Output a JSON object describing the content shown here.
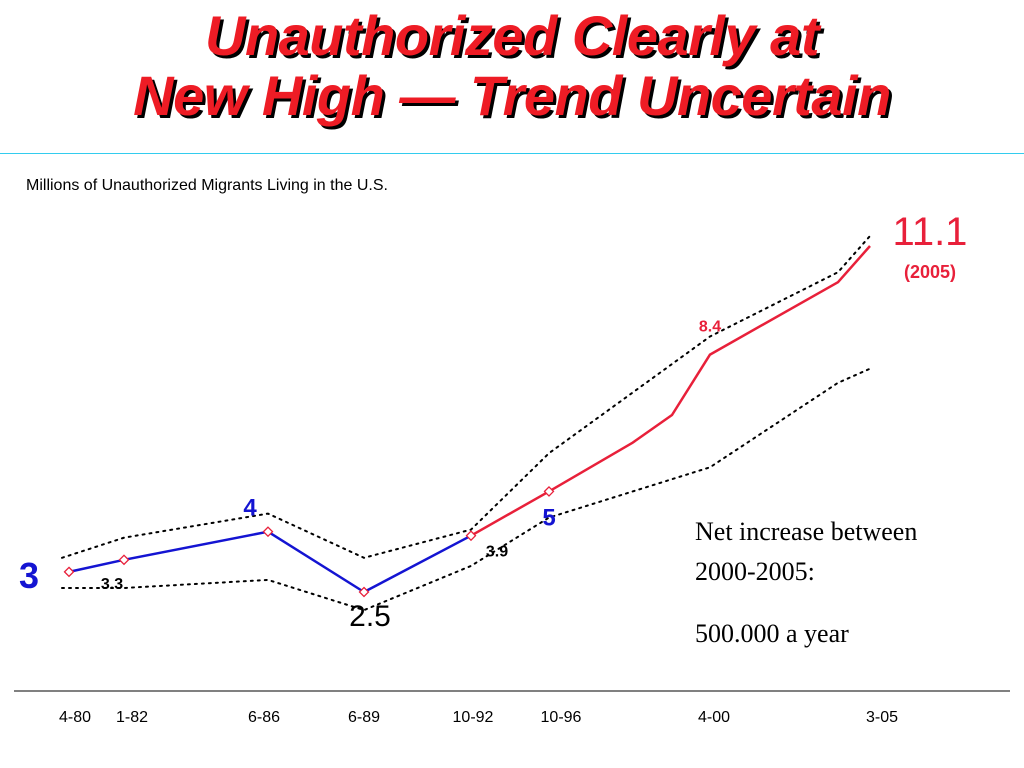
{
  "title": {
    "line1": "Unauthorized Clearly at",
    "line2": "New High — Trend Uncertain"
  },
  "subtitle": "Millions of Unauthorized Migrants Living in the U.S.",
  "note": {
    "line1": "Net increase between",
    "line2": "2000-2005:",
    "line3": "500.000 a year"
  },
  "chart_data": {
    "type": "line",
    "ylabel": "",
    "xlabel": "",
    "ylim": [
      2,
      12
    ],
    "x_ticks": [
      {
        "label": "4-80",
        "t": 1980.25
      },
      {
        "label": "1-82",
        "t": 1982.0
      },
      {
        "label": "6-86",
        "t": 1986.42
      },
      {
        "label": "6-89",
        "t": 1989.42
      },
      {
        "label": "10-92",
        "t": 1992.75
      },
      {
        "label": "10-96",
        "t": 1996.75
      },
      {
        "label": "4-00",
        "t": 2000.25
      },
      {
        "label": "3-05",
        "t": 2005.17
      }
    ],
    "series": [
      {
        "name": "",
        "color": "#1414d2",
        "points": [
          [
            1980.25,
            3.0
          ],
          [
            1982.0,
            3.3
          ],
          [
            1986.42,
            4.0
          ],
          [
            1989.42,
            2.5
          ],
          [
            1992.75,
            3.9
          ]
        ]
      },
      {
        "name": "",
        "color": "#e8203a",
        "points": [
          [
            1992.75,
            3.9
          ],
          [
            1996.75,
            5.0
          ],
          [
            1998.7,
            6.2
          ],
          [
            1999.3,
            6.9
          ],
          [
            2000.25,
            8.4
          ],
          [
            2004.2,
            10.2
          ],
          [
            2005.17,
            11.1
          ]
        ]
      }
    ],
    "upper_band": [
      [
        1980.0,
        3.35
      ],
      [
        1982.0,
        3.85
      ],
      [
        1986.42,
        4.45
      ],
      [
        1989.42,
        3.35
      ],
      [
        1992.75,
        4.05
      ],
      [
        1996.75,
        5.95
      ],
      [
        2000.25,
        8.85
      ],
      [
        2004.2,
        10.45
      ],
      [
        2005.17,
        11.35
      ]
    ],
    "lower_band": [
      [
        1980.0,
        2.6
      ],
      [
        1982.0,
        2.6
      ],
      [
        1986.42,
        2.8
      ],
      [
        1989.42,
        2.05
      ],
      [
        1992.75,
        3.15
      ],
      [
        1996.75,
        4.35
      ],
      [
        2000.25,
        5.6
      ],
      [
        2004.2,
        7.7
      ],
      [
        2005.17,
        8.05
      ]
    ],
    "markers": [
      [
        1980.25,
        3.0
      ],
      [
        1982.0,
        3.3
      ],
      [
        1986.42,
        4.0
      ],
      [
        1989.42,
        2.5
      ],
      [
        1992.75,
        3.9
      ],
      [
        1996.75,
        5.0
      ]
    ],
    "marker_color": "#e8203a",
    "labels": [
      {
        "text": "3",
        "color": "#1414d2",
        "size": 36,
        "x": 1980.25,
        "y": 3.0
      },
      {
        "text": "3.3",
        "color": "#000000",
        "size": 16,
        "x": 1982.0,
        "y": 3.3
      },
      {
        "text": "4",
        "color": "#1414d2",
        "size": 24,
        "x": 1986.42,
        "y": 4.0
      },
      {
        "text": "2.5",
        "color": "#000000",
        "size": 30,
        "x": 1989.42,
        "y": 2.5
      },
      {
        "text": "3.9",
        "color": "#000000",
        "size": 16,
        "x": 1992.75,
        "y": 3.9
      },
      {
        "text": "5",
        "color": "#1414d2",
        "size": 24,
        "x": 1996.75,
        "y": 5.0
      },
      {
        "text": "8.4",
        "color": "#e8203a",
        "size": 16,
        "x": 2000.25,
        "y": 8.4
      },
      {
        "text": "11.1",
        "color": "#e8203a",
        "size": 40,
        "x": 2005.17,
        "y": 11.1
      },
      {
        "text": "(2005)",
        "color": "#e8203a",
        "size": 18,
        "x": 2005.17,
        "y": 11.1
      }
    ],
    "band_color": "#000000",
    "axis_color": "#000000"
  }
}
